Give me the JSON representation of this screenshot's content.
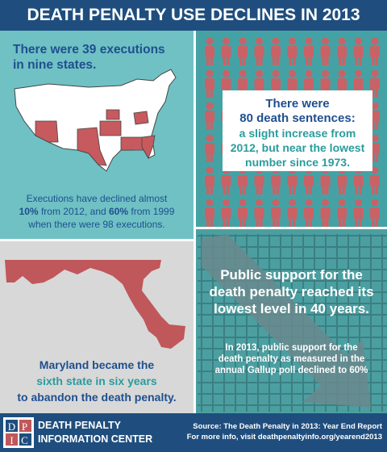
{
  "header": {
    "title": "DEATH PENALTY USE DECLINES IN 2013"
  },
  "executions": {
    "headline": [
      "There were 39 executions",
      "in nine states."
    ],
    "note_line1": "Executions have declined almost",
    "note_line2": [
      "10%",
      " from 2012, and ",
      "60%",
      " from 1999"
    ],
    "note_line3": "when there were 98 executions."
  },
  "sentences": {
    "headline": [
      "There were",
      "80 death sentences:"
    ],
    "detail": [
      "a slight increase from",
      "2012, but near the lowest",
      "number since 1973."
    ]
  },
  "maryland": {
    "lines": [
      "Maryland became the",
      "sixth state in six years",
      "to abandon the death penalty."
    ]
  },
  "support": {
    "headline": [
      "Public support for the",
      "death penalty reached its",
      "lowest level in 40 years."
    ],
    "detail": [
      "In 2013, public support for the",
      "death penalty as measured in the",
      "annual Gallup poll declined to 60%"
    ]
  },
  "footer": {
    "logo": [
      "D",
      "P",
      "I",
      "C"
    ],
    "org": [
      "DEATH PENALTY",
      "INFORMATION CENTER"
    ],
    "source": [
      "Source: The Death Penalty in 2013: Year End Report",
      "For more info, visit deathpenaltyinfo.org/yearend2013"
    ]
  }
}
